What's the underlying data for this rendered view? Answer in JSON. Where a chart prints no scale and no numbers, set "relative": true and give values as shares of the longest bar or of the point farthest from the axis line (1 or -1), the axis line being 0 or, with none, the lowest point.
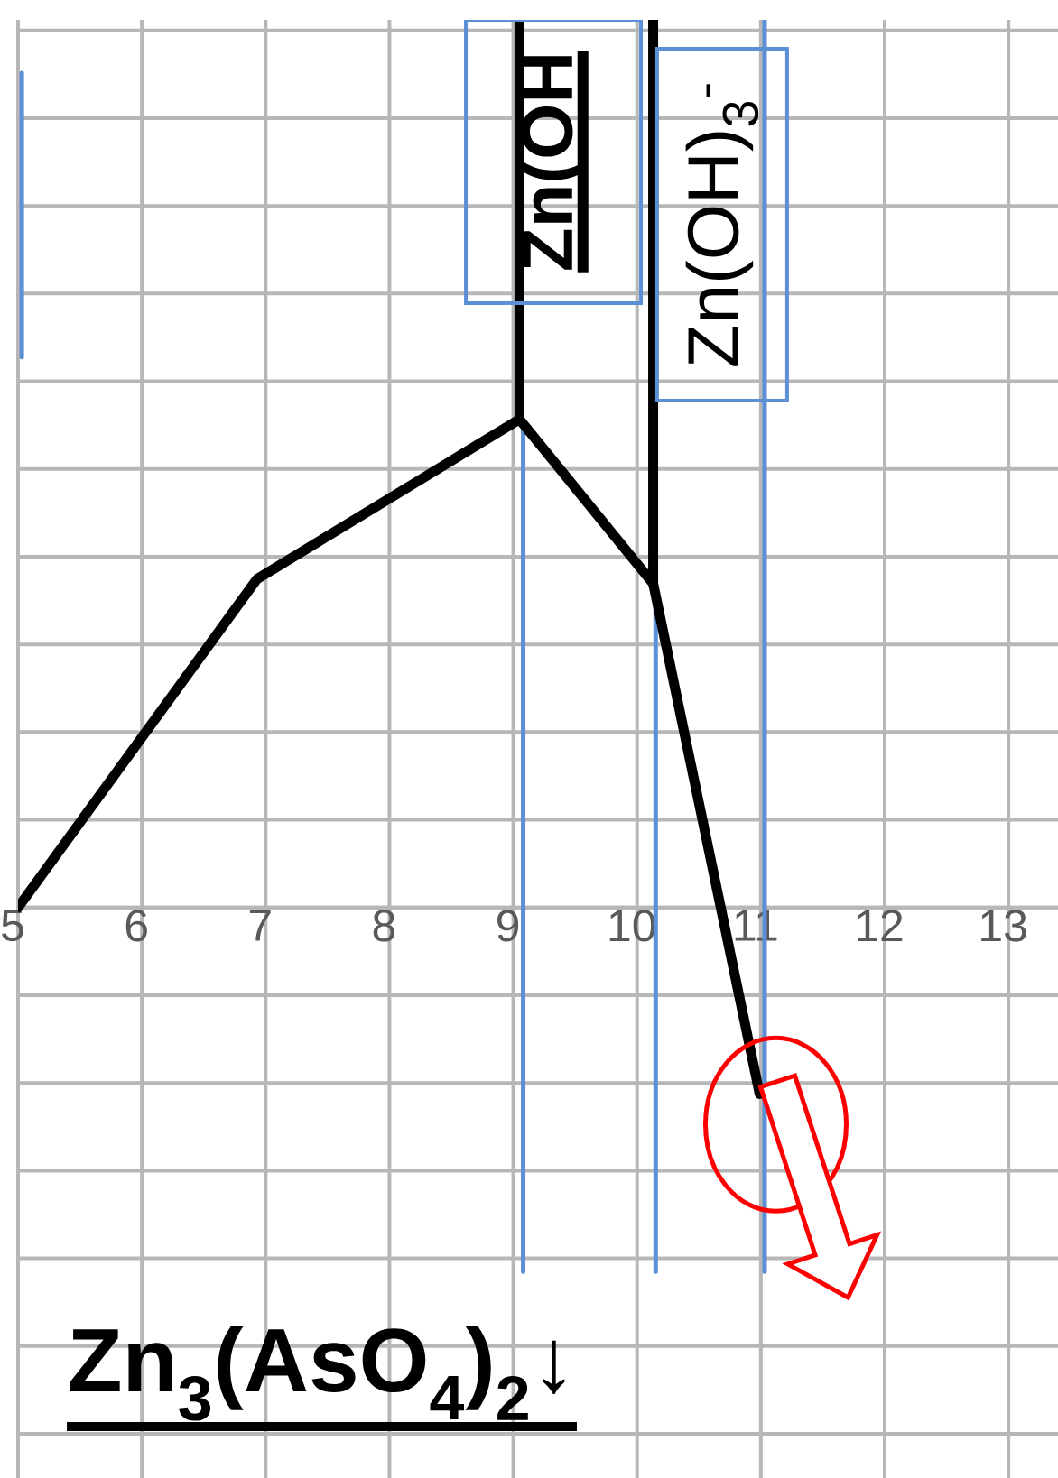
{
  "chart_data": {
    "type": "line",
    "relative": true,
    "xlim": [
      5,
      13.4
    ],
    "xticks": [
      5,
      6,
      7,
      8,
      9,
      10,
      11,
      12,
      13
    ],
    "grid": true,
    "series": [
      {
        "color": "#5b8fd6",
        "x": [
          9.08,
          9.08
        ],
        "values": [
          0.55,
          -0.41
        ]
      },
      {
        "color": "#5b8fd6",
        "x": [
          10.15,
          10.15
        ],
        "values": [
          0.365,
          -0.41
        ]
      },
      {
        "color": "#5b8fd6",
        "x": [
          11.03,
          11.03
        ],
        "values": [
          1,
          -0.41
        ]
      },
      {
        "color": "#5b8fd6",
        "x": [
          5.03,
          5.03
        ],
        "values": [
          0.94,
          0.62
        ]
      },
      {
        "color": "#000000",
        "x": [
          9.05,
          9.05
        ],
        "values": [
          0.55,
          1
        ]
      },
      {
        "color": "#000000",
        "x": [
          10.13,
          10.13
        ],
        "values": [
          0.365,
          1
        ]
      },
      {
        "color": "#000000",
        "x": [
          5,
          6.93,
          9.05,
          10.13,
          10.99
        ],
        "values": [
          0,
          0.37,
          0.55,
          0.365,
          -0.21
        ]
      }
    ],
    "annotations": [
      "Zn(OH",
      "Zn(OH)$_{3}$$^{-}$",
      "Zn$_{3}$(AsO$_{4}$)$_{2}$↓"
    ]
  }
}
